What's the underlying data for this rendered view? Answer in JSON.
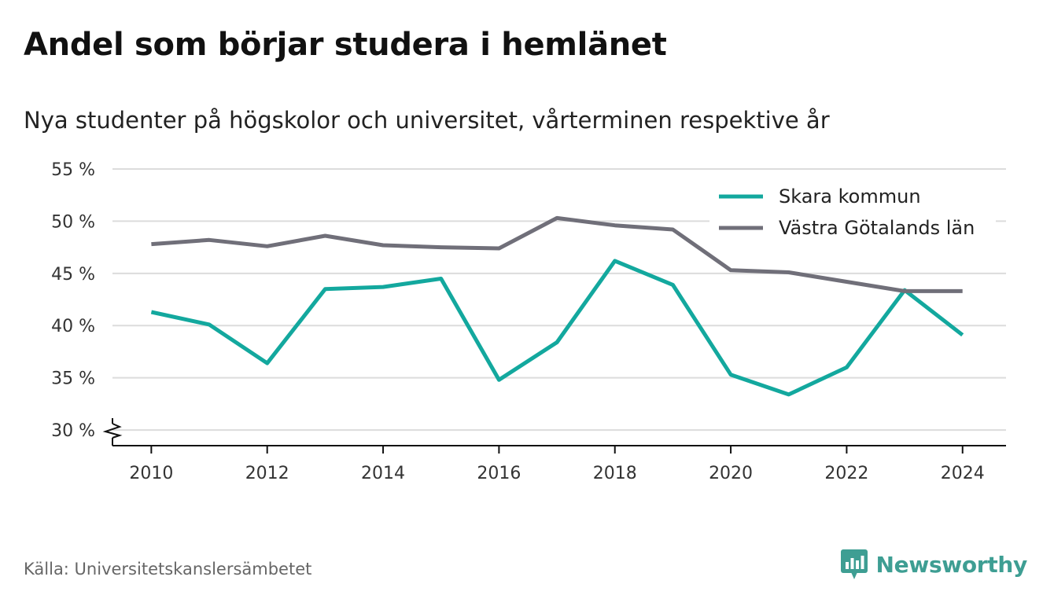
{
  "title": "Andel som börjar studera i hemlänet",
  "subtitle": "Nya studenter på högskolor och universitet, vårterminen respektive år",
  "source": "Källa: Universitetskanslersämbetet",
  "brand": {
    "name": "Newsworthy",
    "icon": "bar-chart-speech-bubble-icon",
    "color": "#3e9e93"
  },
  "chart_data": {
    "type": "line",
    "title": "Andel som börjar studera i hemlänet",
    "subtitle": "Nya studenter på högskolor och universitet, vårterminen respektive år",
    "x": [
      2010,
      2011,
      2012,
      2013,
      2014,
      2015,
      2016,
      2017,
      2018,
      2019,
      2020,
      2021,
      2022,
      2023,
      2024
    ],
    "xticks": [
      2010,
      2012,
      2014,
      2016,
      2018,
      2020,
      2022,
      2024
    ],
    "xticklabels": [
      "2010",
      "2012",
      "2014",
      "2016",
      "2018",
      "2020",
      "2022",
      "2024"
    ],
    "xlim": [
      2009.33,
      2024.75
    ],
    "yticks": [
      30,
      35,
      40,
      45,
      50,
      55
    ],
    "yticklabels": [
      "30 %",
      "35 %",
      "40 %",
      "45 %",
      "50 %",
      "55 %"
    ],
    "ylim": [
      28.5,
      55
    ],
    "y_axis_break": true,
    "grid": true,
    "legend_position": "top-right",
    "series": [
      {
        "name": "Skara kommun",
        "color": "#13a89e",
        "values": [
          41.3,
          40.1,
          36.4,
          43.5,
          43.7,
          44.5,
          34.8,
          38.4,
          46.2,
          43.9,
          35.3,
          33.4,
          36.0,
          43.4,
          39.1
        ]
      },
      {
        "name": "Västra Götalands län",
        "color": "#706f79",
        "values": [
          47.8,
          48.2,
          47.6,
          48.6,
          47.7,
          47.5,
          47.4,
          50.3,
          49.6,
          49.2,
          45.3,
          45.1,
          44.2,
          43.3,
          43.3
        ]
      }
    ]
  }
}
